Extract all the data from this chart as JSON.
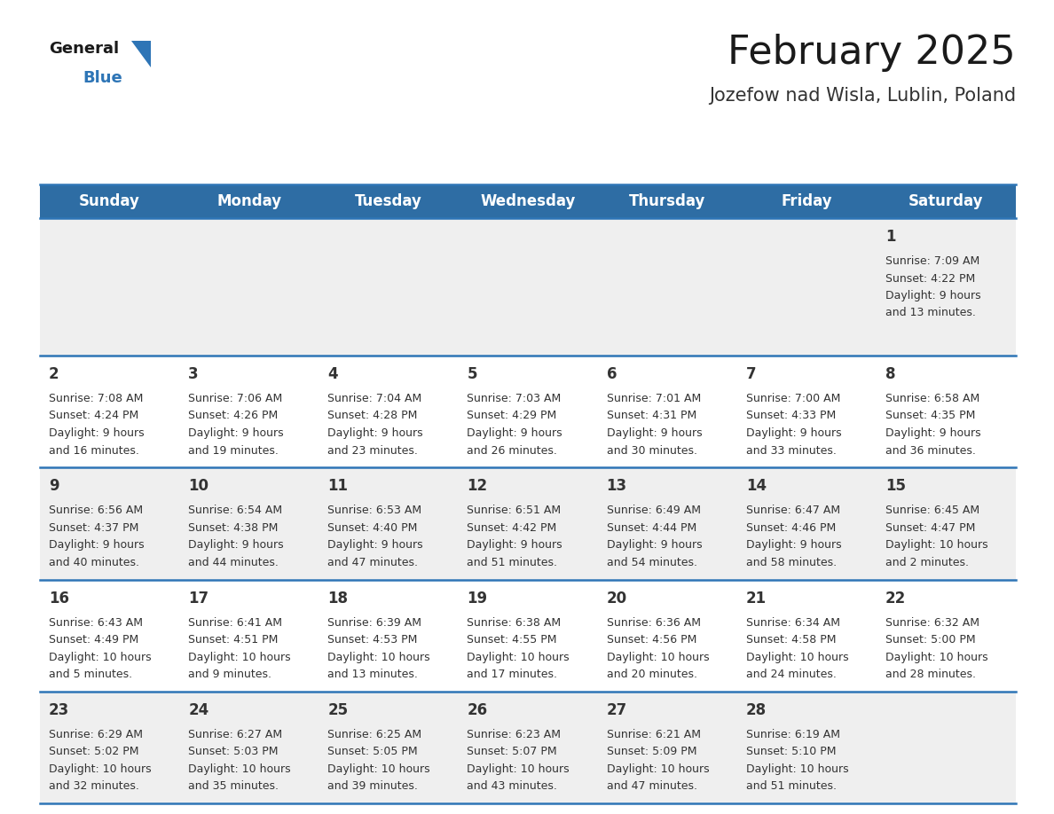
{
  "title": "February 2025",
  "subtitle": "Jozefow nad Wisla, Lublin, Poland",
  "header_bg": "#2E6DA4",
  "header_text_color": "#FFFFFF",
  "cell_bg_light": "#EFEFEF",
  "cell_bg_white": "#FFFFFF",
  "day_text_color": "#333333",
  "info_text_color": "#333333",
  "separator_color": "#2E75B6",
  "days_of_week": [
    "Sunday",
    "Monday",
    "Tuesday",
    "Wednesday",
    "Thursday",
    "Friday",
    "Saturday"
  ],
  "weeks": [
    [
      {
        "day": null,
        "sunrise": null,
        "sunset": null,
        "daylight": null
      },
      {
        "day": null,
        "sunrise": null,
        "sunset": null,
        "daylight": null
      },
      {
        "day": null,
        "sunrise": null,
        "sunset": null,
        "daylight": null
      },
      {
        "day": null,
        "sunrise": null,
        "sunset": null,
        "daylight": null
      },
      {
        "day": null,
        "sunrise": null,
        "sunset": null,
        "daylight": null
      },
      {
        "day": null,
        "sunrise": null,
        "sunset": null,
        "daylight": null
      },
      {
        "day": 1,
        "sunrise": "7:09 AM",
        "sunset": "4:22 PM",
        "daylight": "9 hours and 13 minutes."
      }
    ],
    [
      {
        "day": 2,
        "sunrise": "7:08 AM",
        "sunset": "4:24 PM",
        "daylight": "9 hours and 16 minutes."
      },
      {
        "day": 3,
        "sunrise": "7:06 AM",
        "sunset": "4:26 PM",
        "daylight": "9 hours and 19 minutes."
      },
      {
        "day": 4,
        "sunrise": "7:04 AM",
        "sunset": "4:28 PM",
        "daylight": "9 hours and 23 minutes."
      },
      {
        "day": 5,
        "sunrise": "7:03 AM",
        "sunset": "4:29 PM",
        "daylight": "9 hours and 26 minutes."
      },
      {
        "day": 6,
        "sunrise": "7:01 AM",
        "sunset": "4:31 PM",
        "daylight": "9 hours and 30 minutes."
      },
      {
        "day": 7,
        "sunrise": "7:00 AM",
        "sunset": "4:33 PM",
        "daylight": "9 hours and 33 minutes."
      },
      {
        "day": 8,
        "sunrise": "6:58 AM",
        "sunset": "4:35 PM",
        "daylight": "9 hours and 36 minutes."
      }
    ],
    [
      {
        "day": 9,
        "sunrise": "6:56 AM",
        "sunset": "4:37 PM",
        "daylight": "9 hours and 40 minutes."
      },
      {
        "day": 10,
        "sunrise": "6:54 AM",
        "sunset": "4:38 PM",
        "daylight": "9 hours and 44 minutes."
      },
      {
        "day": 11,
        "sunrise": "6:53 AM",
        "sunset": "4:40 PM",
        "daylight": "9 hours and 47 minutes."
      },
      {
        "day": 12,
        "sunrise": "6:51 AM",
        "sunset": "4:42 PM",
        "daylight": "9 hours and 51 minutes."
      },
      {
        "day": 13,
        "sunrise": "6:49 AM",
        "sunset": "4:44 PM",
        "daylight": "9 hours and 54 minutes."
      },
      {
        "day": 14,
        "sunrise": "6:47 AM",
        "sunset": "4:46 PM",
        "daylight": "9 hours and 58 minutes."
      },
      {
        "day": 15,
        "sunrise": "6:45 AM",
        "sunset": "4:47 PM",
        "daylight": "10 hours and 2 minutes."
      }
    ],
    [
      {
        "day": 16,
        "sunrise": "6:43 AM",
        "sunset": "4:49 PM",
        "daylight": "10 hours and 5 minutes."
      },
      {
        "day": 17,
        "sunrise": "6:41 AM",
        "sunset": "4:51 PM",
        "daylight": "10 hours and 9 minutes."
      },
      {
        "day": 18,
        "sunrise": "6:39 AM",
        "sunset": "4:53 PM",
        "daylight": "10 hours and 13 minutes."
      },
      {
        "day": 19,
        "sunrise": "6:38 AM",
        "sunset": "4:55 PM",
        "daylight": "10 hours and 17 minutes."
      },
      {
        "day": 20,
        "sunrise": "6:36 AM",
        "sunset": "4:56 PM",
        "daylight": "10 hours and 20 minutes."
      },
      {
        "day": 21,
        "sunrise": "6:34 AM",
        "sunset": "4:58 PM",
        "daylight": "10 hours and 24 minutes."
      },
      {
        "day": 22,
        "sunrise": "6:32 AM",
        "sunset": "5:00 PM",
        "daylight": "10 hours and 28 minutes."
      }
    ],
    [
      {
        "day": 23,
        "sunrise": "6:29 AM",
        "sunset": "5:02 PM",
        "daylight": "10 hours and 32 minutes."
      },
      {
        "day": 24,
        "sunrise": "6:27 AM",
        "sunset": "5:03 PM",
        "daylight": "10 hours and 35 minutes."
      },
      {
        "day": 25,
        "sunrise": "6:25 AM",
        "sunset": "5:05 PM",
        "daylight": "10 hours and 39 minutes."
      },
      {
        "day": 26,
        "sunrise": "6:23 AM",
        "sunset": "5:07 PM",
        "daylight": "10 hours and 43 minutes."
      },
      {
        "day": 27,
        "sunrise": "6:21 AM",
        "sunset": "5:09 PM",
        "daylight": "10 hours and 47 minutes."
      },
      {
        "day": 28,
        "sunrise": "6:19 AM",
        "sunset": "5:10 PM",
        "daylight": "10 hours and 51 minutes."
      },
      {
        "day": null,
        "sunrise": null,
        "sunset": null,
        "daylight": null
      }
    ]
  ],
  "title_fontsize": 32,
  "subtitle_fontsize": 15,
  "header_fontsize": 12,
  "day_num_fontsize": 12,
  "info_fontsize": 9
}
